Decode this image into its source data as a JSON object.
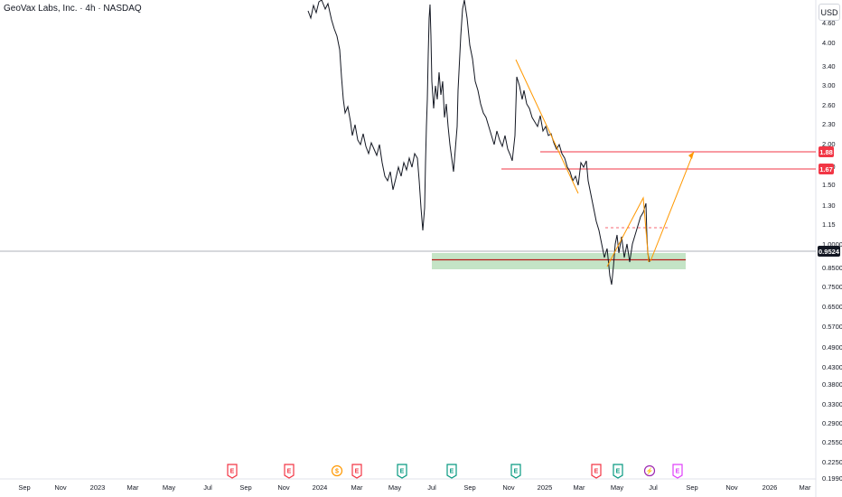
{
  "header": {
    "title": "GeoVax Labs, Inc. · 4h · NASDAQ",
    "currency": "USD"
  },
  "price_axis": {
    "ticks": [
      "4.60",
      "4.00",
      "3.40",
      "3.00",
      "2.60",
      "2.30",
      "2.00",
      "1.70",
      "1.50",
      "1.30",
      "1.15",
      "1.0000",
      "0.8500",
      "0.7500",
      "0.6500",
      "0.5700",
      "0.4900",
      "0.4300",
      "0.3800",
      "0.3300",
      "0.2900",
      "0.2550",
      "0.2250",
      "0.1990"
    ],
    "current_price": "0.9524",
    "resistance_1": "1.88",
    "resistance_2": "1.67"
  },
  "time_axis": {
    "labels": [
      "Sep",
      "Nov",
      "2023",
      "Mar",
      "May",
      "Jul",
      "Sep",
      "Nov",
      "2024",
      "Mar",
      "May",
      "Jul",
      "Sep",
      "Nov",
      "2025",
      "Mar",
      "May",
      "Jul",
      "Sep",
      "Nov",
      "2026",
      "Mar"
    ]
  },
  "events": [
    {
      "glyph": "E",
      "kind": "earnings-missed",
      "color": "#f23645"
    },
    {
      "glyph": "E",
      "kind": "earnings-missed",
      "color": "#f23645"
    },
    {
      "glyph": "$",
      "kind": "dividend",
      "color": "#ff9800"
    },
    {
      "glyph": "E",
      "kind": "earnings-missed",
      "color": "#f23645"
    },
    {
      "glyph": "E",
      "kind": "earnings-beat",
      "color": "#089981"
    },
    {
      "glyph": "E",
      "kind": "earnings-beat",
      "color": "#089981"
    },
    {
      "glyph": "E",
      "kind": "earnings-beat",
      "color": "#089981"
    },
    {
      "glyph": "E",
      "kind": "earnings-missed",
      "color": "#f23645"
    },
    {
      "glyph": "E",
      "kind": "earnings-beat",
      "color": "#089981"
    },
    {
      "glyph": "⚡",
      "kind": "split",
      "color": "#9c27b0"
    },
    {
      "glyph": "E",
      "kind": "earnings-upcoming",
      "color": "#e040fb"
    }
  ],
  "colors": {
    "candles": "#131722",
    "resistance": "#f23645",
    "support_zone": "#a5d6a7",
    "support_line": "#b71c1c",
    "projection": "#ff9800",
    "price_line": "#9598a1"
  },
  "chart_data": {
    "type": "line",
    "title": "GeoVax Labs, Inc. · 4h · NASDAQ",
    "ylabel": "USD",
    "yscale": "log",
    "ylim": [
      0.19,
      4.9
    ],
    "x": [
      "2024-03",
      "2024-04",
      "2024-05",
      "2024-06",
      "2024-07",
      "2024-08",
      "2024-09",
      "2024-10",
      "2024-11",
      "2024-12",
      "2025-01",
      "2025-02",
      "2025-03",
      "2025-04",
      "2025-05",
      "2025-06"
    ],
    "series": [
      {
        "values": [
          4.6,
          3.2,
          2.3,
          1.6,
          1.05,
          4.6,
          4.8,
          2.2,
          2.0,
          3.4,
          2.4,
          1.9,
          1.7,
          0.8,
          1.05,
          0.95
        ]
      }
    ],
    "horizontal_levels": [
      1.88,
      1.67,
      0.9524
    ],
    "support_zone": [
      0.85,
      0.92
    ]
  }
}
